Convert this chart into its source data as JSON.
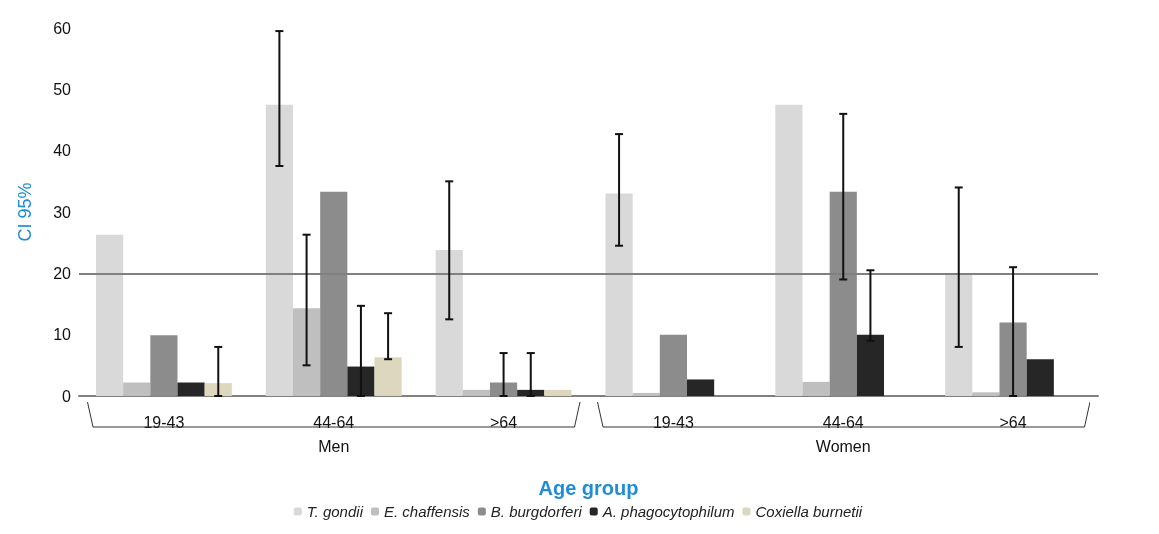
{
  "chart_data": {
    "type": "bar",
    "ylabel": "CI 95%",
    "xlabel": "Age group",
    "categories": [
      "19-43",
      "44-64",
      ">64",
      "19-43",
      "44-64",
      ">64"
    ],
    "annotations": [
      "Men",
      "Women"
    ],
    "series": [
      {
        "name": "T. gondii",
        "color": "#d9d9d9",
        "values": [
          26.3,
          47.5,
          23.8,
          33.0,
          47.5,
          20.0
        ],
        "errors": [
          null,
          [
            37.5,
            59.5
          ],
          [
            12.5,
            35
          ],
          [
            24.5,
            42.7
          ],
          null,
          [
            8,
            34
          ]
        ]
      },
      {
        "name": "E. chaffensis",
        "color": "#bfbfbf",
        "values": [
          2.2,
          14.3,
          1.0,
          0.5,
          2.3,
          0.6
        ],
        "errors": [
          null,
          [
            5,
            26.3
          ],
          null,
          null,
          null,
          null
        ]
      },
      {
        "name": "B. burgdorferi",
        "color": "#8c8c8c",
        "values": [
          9.9,
          33.3,
          2.2,
          10.0,
          33.3,
          12.0
        ],
        "errors": [
          null,
          null,
          [
            0,
            7
          ],
          null,
          [
            19,
            46
          ],
          [
            0,
            21
          ]
        ]
      },
      {
        "name": "A. phagocytophilum",
        "color": "#262626",
        "values": [
          2.2,
          4.8,
          1.0,
          2.7,
          10.0,
          6.0
        ],
        "errors": [
          null,
          [
            0,
            14.7
          ],
          [
            0,
            7
          ],
          null,
          [
            9,
            20.5
          ],
          null
        ]
      },
      {
        "name": "Coxiella burnetii",
        "color": "#ddd8bd",
        "values": [
          2.1,
          6.3,
          1.0,
          null,
          null,
          null
        ],
        "errors": [
          [
            0,
            8
          ],
          [
            6,
            13.5
          ],
          null,
          null,
          null,
          null
        ]
      }
    ],
    "ylim": [
      0,
      60
    ],
    "yticks": [
      0,
      10,
      20,
      30,
      40,
      50,
      60
    ],
    "ref_lines": [
      {
        "axis": "y",
        "value": 20,
        "color": "#808080"
      }
    ],
    "grid": false,
    "legend": "bottom"
  }
}
